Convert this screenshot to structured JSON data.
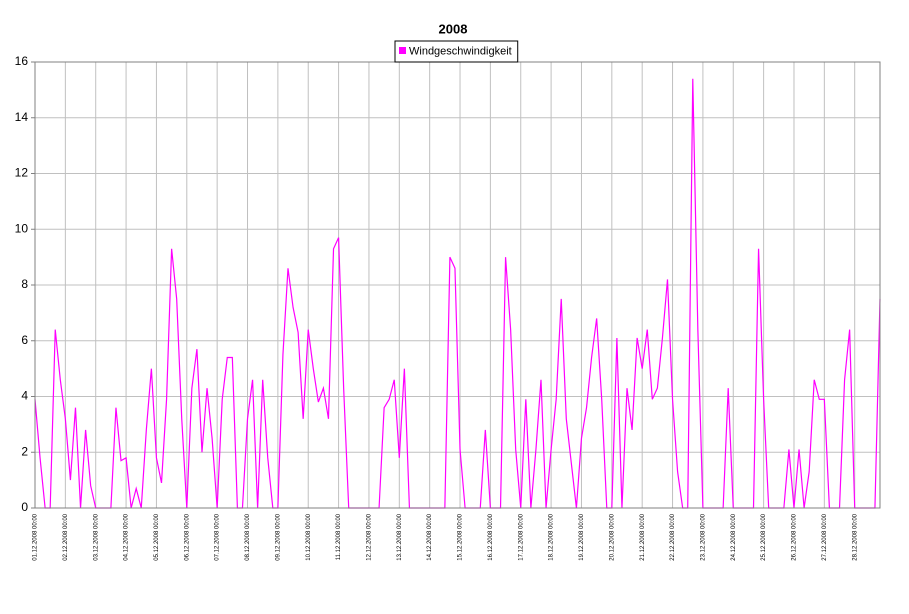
{
  "chart_data": {
    "type": "line",
    "title": "2008",
    "series": [
      {
        "name": "Windgeschwindigkeit",
        "color": "#ff00ff",
        "values": [
          3.9,
          1.8,
          0,
          0,
          6.4,
          4.6,
          3.2,
          1,
          3.6,
          0,
          2.8,
          0.8,
          0,
          0,
          0,
          0,
          3.6,
          1.7,
          1.8,
          0,
          0.7,
          0,
          2.8,
          5,
          1.8,
          0.9,
          3.9,
          9.3,
          7.5,
          3.2,
          0,
          4.3,
          5.7,
          2,
          4.3,
          2.5,
          0,
          3.9,
          5.4,
          5.4,
          0,
          0,
          3.2,
          4.6,
          0,
          4.6,
          1.8,
          0,
          0,
          5.5,
          8.6,
          7.2,
          6.3,
          3.2,
          6.4,
          5,
          3.8,
          4.3,
          3.2,
          9.3,
          9.7,
          4.3,
          0,
          0,
          0,
          0,
          0,
          0,
          0,
          3.6,
          3.9,
          4.6,
          1.8,
          5,
          0,
          0,
          0,
          0,
          0,
          0,
          0,
          0,
          9,
          8.6,
          2.1,
          0,
          0,
          0,
          0,
          2.8,
          0,
          0,
          0,
          9,
          6.4,
          2.1,
          0,
          3.9,
          0,
          2.1,
          4.6,
          0,
          2.1,
          3.9,
          7.5,
          3.2,
          1.6,
          0,
          2.5,
          3.6,
          5.4,
          6.8,
          3.9,
          0,
          0,
          6.1,
          0,
          4.3,
          2.8,
          6.1,
          5,
          6.4,
          3.9,
          4.3,
          6.1,
          8.2,
          3.9,
          1.3,
          0,
          0,
          15.4,
          6.4,
          0,
          0,
          0,
          0,
          0,
          4.3,
          0,
          0,
          0,
          0,
          0,
          9.3,
          3.9,
          0,
          0,
          0,
          0,
          2.1,
          0,
          2.1,
          0,
          1.3,
          4.6,
          3.9,
          3.9,
          0,
          0,
          0,
          4.6,
          6.4,
          0,
          0,
          0,
          0,
          0,
          7.5
        ]
      }
    ],
    "categories": [
      "01.12.2008 00:00",
      null,
      null,
      null,
      null,
      null,
      "02.12.2008 00:00",
      null,
      null,
      null,
      null,
      null,
      "03.12.2008 00:00",
      null,
      null,
      null,
      null,
      null,
      "04.12.2008 00:00",
      null,
      null,
      null,
      null,
      null,
      "05.12.2008 00:00",
      null,
      null,
      null,
      null,
      null,
      "06.12.2008 00:00",
      null,
      null,
      null,
      null,
      null,
      "07.12.2008 00:00",
      null,
      null,
      null,
      null,
      null,
      "08.12.2008 00:00",
      null,
      null,
      null,
      null,
      null,
      "09.12.2008 00:00",
      null,
      null,
      null,
      null,
      null,
      "10.12.2008 00:00",
      null,
      null,
      null,
      null,
      null,
      "11.12.2008 00:00",
      null,
      null,
      null,
      null,
      null,
      "12.12.2008 00:00",
      null,
      null,
      null,
      null,
      null,
      "13.12.2008 00:00",
      null,
      null,
      null,
      null,
      null,
      "14.12.2008 00:00",
      null,
      null,
      null,
      null,
      null,
      "15.12.2008 00:00",
      null,
      null,
      null,
      null,
      null,
      "16.12.2008 00:00",
      null,
      null,
      null,
      null,
      null,
      "17.12.2008 00:00",
      null,
      null,
      null,
      null,
      null,
      "18.12.2008 00:00",
      null,
      null,
      null,
      null,
      null,
      "19.12.2008 00:00",
      null,
      null,
      null,
      null,
      null,
      "20.12.2008 00:00",
      null,
      null,
      null,
      null,
      null,
      "21.12.2008 00:00",
      null,
      null,
      null,
      null,
      null,
      "22.12.2008 00:00",
      null,
      null,
      null,
      null,
      null,
      "23.12.2008 00:00",
      null,
      null,
      null,
      null,
      null,
      "24.12.2008 00:00",
      null,
      null,
      null,
      null,
      null,
      "25.12.2008 00:00",
      null,
      null,
      null,
      null,
      null,
      "26.12.2008 00:00",
      null,
      null,
      null,
      null,
      null,
      "27.12.2008 00:00",
      null,
      null,
      null,
      null,
      null,
      "28.12.2008 00:00",
      null,
      null,
      null,
      null,
      null
    ],
    "ylim": [
      0,
      16
    ],
    "yticks": [
      0,
      2,
      4,
      6,
      8,
      10,
      12,
      14,
      16
    ],
    "grid": true,
    "legend": "top"
  }
}
